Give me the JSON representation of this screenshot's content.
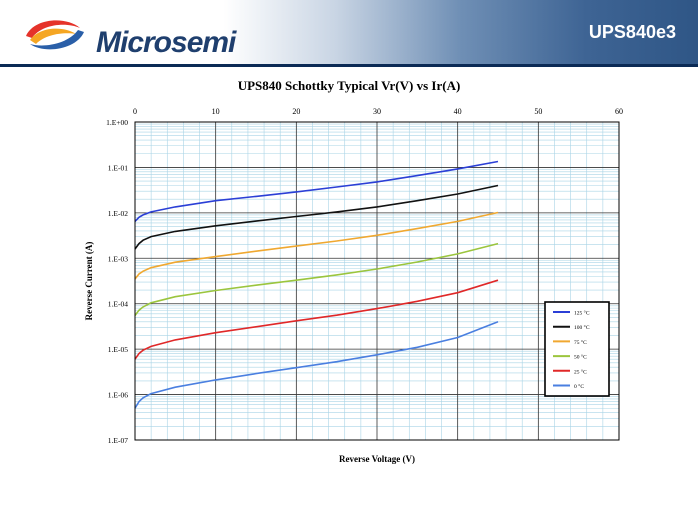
{
  "header": {
    "brand": "Microsemi",
    "part_number": "UPS840e3"
  },
  "colors": {
    "header_dark": "#2f5686",
    "header_line": "#0b2a55",
    "brand_text": "#1f3f6e"
  },
  "chart_data": {
    "type": "line",
    "title": "UPS840 Schottky Typical Vr(V) vs Ir(A)",
    "xlabel": "Reverse Voltage (V)",
    "ylabel": "Reverse Current (A)",
    "xlim": [
      0,
      60
    ],
    "ylim": [
      1e-07,
      1
    ],
    "y_scale": "log",
    "x_axis_position": "top",
    "grid": true,
    "legend_position": "right",
    "x_ticks": [
      "0",
      "10",
      "20",
      "30",
      "40",
      "50",
      "60"
    ],
    "y_ticks": [
      "1.E+00",
      "1.E-01",
      "1.E-02",
      "1.E-03",
      "1.E-04",
      "1.E-05",
      "1.E-06",
      "1.E-07"
    ],
    "x": [
      0,
      0.5,
      1,
      2,
      5,
      10,
      15,
      20,
      25,
      30,
      35,
      40,
      45
    ],
    "series": [
      {
        "name": "125 °C",
        "color": "#2b3fd6",
        "values": [
          0.0065,
          0.008,
          0.009,
          0.0105,
          0.0135,
          0.0185,
          0.023,
          0.029,
          0.037,
          0.048,
          0.066,
          0.093,
          0.135
        ]
      },
      {
        "name": "100 °C",
        "color": "#111111",
        "values": [
          0.0016,
          0.0021,
          0.0025,
          0.003,
          0.0039,
          0.0052,
          0.0066,
          0.0083,
          0.0105,
          0.0135,
          0.0185,
          0.026,
          0.04
        ]
      },
      {
        "name": "75 °C",
        "color": "#f0a830",
        "values": [
          0.00035,
          0.00045,
          0.00052,
          0.00062,
          0.00082,
          0.00109,
          0.00143,
          0.00185,
          0.0024,
          0.0032,
          0.0045,
          0.0065,
          0.0102
        ]
      },
      {
        "name": "50 °C",
        "color": "#9bc53d",
        "values": [
          5.5e-05,
          7.2e-05,
          8.5e-05,
          0.000105,
          0.000143,
          0.000195,
          0.000255,
          0.00033,
          0.00043,
          0.00058,
          0.00083,
          0.00125,
          0.0021
        ]
      },
      {
        "name": "25 °C",
        "color": "#e02828",
        "values": [
          6e-06,
          8e-06,
          9.5e-06,
          1.15e-05,
          1.6e-05,
          2.3e-05,
          3.1e-05,
          4.2e-05,
          5.6e-05,
          7.8e-05,
          0.000113,
          0.000175,
          0.00033
        ]
      },
      {
        "name": "0 °C",
        "color": "#4a7fe0",
        "values": [
          5e-07,
          7e-07,
          8.5e-07,
          1.05e-06,
          1.45e-06,
          2.1e-06,
          2.9e-06,
          3.9e-06,
          5.3e-06,
          7.5e-06,
          1.1e-05,
          1.8e-05,
          4e-05
        ]
      }
    ]
  }
}
